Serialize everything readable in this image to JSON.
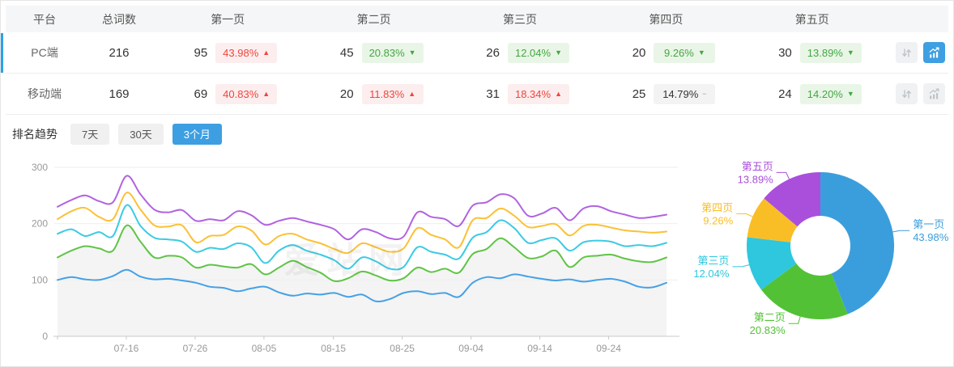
{
  "table": {
    "headers": {
      "platform": "平台",
      "total": "总词数",
      "pages": [
        "第一页",
        "第二页",
        "第三页",
        "第四页",
        "第五页"
      ]
    },
    "rows": [
      {
        "platform": "PC端",
        "total": "216",
        "selected": true,
        "pages": [
          {
            "count": "95",
            "pct": "43.98%",
            "dir": "up"
          },
          {
            "count": "45",
            "pct": "20.83%",
            "dir": "down"
          },
          {
            "count": "26",
            "pct": "12.04%",
            "dir": "down"
          },
          {
            "count": "20",
            "pct": "9.26%",
            "dir": "down"
          },
          {
            "count": "30",
            "pct": "13.89%",
            "dir": "down"
          }
        ]
      },
      {
        "platform": "移动端",
        "total": "169",
        "selected": false,
        "pages": [
          {
            "count": "69",
            "pct": "40.83%",
            "dir": "up"
          },
          {
            "count": "20",
            "pct": "11.83%",
            "dir": "up"
          },
          {
            "count": "31",
            "pct": "18.34%",
            "dir": "up"
          },
          {
            "count": "25",
            "pct": "14.79%",
            "dir": "flat"
          },
          {
            "count": "24",
            "pct": "14.20%",
            "dir": "down"
          }
        ]
      }
    ]
  },
  "trend": {
    "label": "排名趋势",
    "tabs": [
      {
        "label": "7天",
        "active": false
      },
      {
        "label": "30天",
        "active": false
      },
      {
        "label": "3个月",
        "active": true
      }
    ]
  },
  "watermark": "爱站网",
  "colors": {
    "accent_blue": "#3D9FE2",
    "selected_row_bar": "#2CA1E8",
    "badge_up_text": "#EF453E",
    "badge_down_text": "#44A642",
    "header_bg": "#F5F6F7"
  },
  "chart_data": [
    {
      "type": "line",
      "title": "排名趋势 3个月",
      "ylim": [
        0,
        300
      ],
      "y_ticks": [
        0,
        100,
        200,
        300
      ],
      "x_ticks": [
        {
          "label": "07-16",
          "f": 0.113
        },
        {
          "label": "07-26",
          "f": 0.226
        },
        {
          "label": "08-05",
          "f": 0.339
        },
        {
          "label": "08-15",
          "f": 0.453
        },
        {
          "label": "08-25",
          "f": 0.566
        },
        {
          "label": "09-04",
          "f": 0.679
        },
        {
          "label": "09-14",
          "f": 0.792
        },
        {
          "label": "09-24",
          "f": 0.905
        }
      ],
      "grid": true,
      "series": [
        {
          "name": "第一页",
          "color": "#45A1E6",
          "values": [
            100,
            105,
            101,
            100,
            107,
            118,
            106,
            101,
            102,
            99,
            95,
            88,
            86,
            80,
            85,
            88,
            78,
            72,
            76,
            74,
            77,
            70,
            74,
            62,
            66,
            77,
            80,
            75,
            77,
            70,
            95,
            105,
            103,
            110,
            106,
            102,
            99,
            101,
            97,
            100,
            102,
            97,
            88,
            87,
            95
          ]
        },
        {
          "name": "第二页",
          "color": "#5FC445",
          "area": "#F4F4F4",
          "values": [
            140,
            152,
            160,
            156,
            152,
            197,
            168,
            140,
            143,
            140,
            122,
            127,
            124,
            122,
            128,
            110,
            122,
            134,
            123,
            113,
            98,
            103,
            115,
            108,
            99,
            103,
            122,
            114,
            120,
            113,
            146,
            155,
            174,
            158,
            139,
            142,
            152,
            123,
            140,
            143,
            145,
            138,
            133,
            132,
            140
          ]
        },
        {
          "name": "第三页",
          "color": "#3BCBE3",
          "values": [
            182,
            190,
            178,
            185,
            178,
            233,
            196,
            175,
            172,
            168,
            150,
            157,
            155,
            165,
            158,
            130,
            152,
            162,
            152,
            145,
            135,
            120,
            140,
            133,
            120,
            123,
            158,
            150,
            145,
            138,
            175,
            185,
            206,
            192,
            166,
            171,
            174,
            152,
            167,
            170,
            168,
            160,
            162,
            160,
            166
          ]
        },
        {
          "name": "第四页",
          "color": "#FBC136",
          "values": [
            208,
            222,
            228,
            212,
            208,
            255,
            225,
            197,
            195,
            197,
            167,
            178,
            180,
            195,
            188,
            163,
            178,
            182,
            172,
            165,
            155,
            148,
            165,
            158,
            150,
            156,
            192,
            180,
            172,
            158,
            206,
            210,
            227,
            214,
            194,
            196,
            199,
            179,
            196,
            198,
            193,
            188,
            186,
            184,
            186
          ]
        },
        {
          "name": "第五页",
          "color": "#B163E0",
          "values": [
            230,
            242,
            250,
            240,
            238,
            285,
            252,
            225,
            220,
            224,
            205,
            208,
            206,
            222,
            215,
            198,
            205,
            210,
            204,
            198,
            190,
            172,
            190,
            185,
            174,
            177,
            220,
            212,
            208,
            196,
            232,
            238,
            252,
            245,
            214,
            218,
            228,
            206,
            227,
            231,
            222,
            216,
            210,
            212,
            216
          ]
        }
      ]
    },
    {
      "type": "donut",
      "slices": [
        {
          "label": "第一页",
          "value": 43.98,
          "pct": "43.98%",
          "color": "#3B9EDC"
        },
        {
          "label": "第二页",
          "value": 20.83,
          "pct": "20.83%",
          "color": "#52C136"
        },
        {
          "label": "第三页",
          "value": 12.04,
          "pct": "12.04%",
          "color": "#2EC7DD"
        },
        {
          "label": "第四页",
          "value": 9.26,
          "pct": "9.26%",
          "color": "#F9BE26"
        },
        {
          "label": "第五页",
          "value": 13.89,
          "pct": "13.89%",
          "color": "#A94FDC"
        }
      ]
    }
  ]
}
